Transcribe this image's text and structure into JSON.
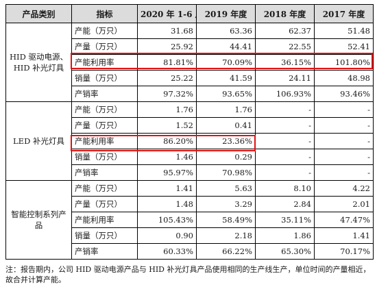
{
  "table": {
    "headers": [
      "产品类别",
      "指标",
      "2020 年 1-6 月",
      "2019 年度",
      "2018 年度",
      "2017 年度"
    ],
    "groups": [
      {
        "category": "HID 驱动电源、HID 补光灯具",
        "rows": [
          {
            "metric": "产能（万只）",
            "values": [
              "31.68",
              "63.36",
              "62.37",
              "51.48"
            ]
          },
          {
            "metric": "产量（万只）",
            "values": [
              "25.92",
              "44.41",
              "22.55",
              "52.41"
            ]
          },
          {
            "metric": "产能利用率",
            "values": [
              "81.81%",
              "70.09%",
              "36.15%",
              "101.80%"
            ]
          },
          {
            "metric": "销量（万只）",
            "values": [
              "25.22",
              "41.59",
              "24.11",
              "48.98"
            ]
          },
          {
            "metric": "产销率",
            "values": [
              "97.32%",
              "93.65%",
              "106.93%",
              "93.46%"
            ]
          }
        ]
      },
      {
        "category": "LED 补光灯具",
        "rows": [
          {
            "metric": "产能（万只）",
            "values": [
              "1.76",
              "1.76",
              "-",
              "-"
            ]
          },
          {
            "metric": "产量（万只）",
            "values": [
              "1.52",
              "0.41",
              "-",
              "-"
            ]
          },
          {
            "metric": "产能利用率",
            "values": [
              "86.20%",
              "23.36%",
              "-",
              "-"
            ]
          },
          {
            "metric": "销量（万只）",
            "values": [
              "1.46",
              "0.29",
              "-",
              "-"
            ]
          },
          {
            "metric": "产销率",
            "values": [
              "95.97%",
              "70.98%",
              "-",
              "-"
            ]
          }
        ]
      },
      {
        "category": "智能控制系列产品",
        "rows": [
          {
            "metric": "产能（万只）",
            "values": [
              "1.41",
              "5.63",
              "8.10",
              "4.22"
            ]
          },
          {
            "metric": "产量（万只）",
            "values": [
              "1.48",
              "3.29",
              "2.84",
              "2.01"
            ]
          },
          {
            "metric": "产能利用率",
            "values": [
              "105.43%",
              "58.49%",
              "35.11%",
              "47.47%"
            ]
          },
          {
            "metric": "销量（万只）",
            "values": [
              "0.90",
              "2.18",
              "1.86",
              "1.41"
            ]
          },
          {
            "metric": "产销率",
            "values": [
              "60.33%",
              "66.22%",
              "65.30%",
              "70.17%"
            ]
          }
        ]
      }
    ]
  },
  "note": "注：报告期内，公司 HID 驱动电源产品与 HID 补光灯具产品使用相同的生产线生产，单位时间的产量相近，故合并计算产能。",
  "highlight_color": "#e01010",
  "header_bg": "#dcdcdc"
}
